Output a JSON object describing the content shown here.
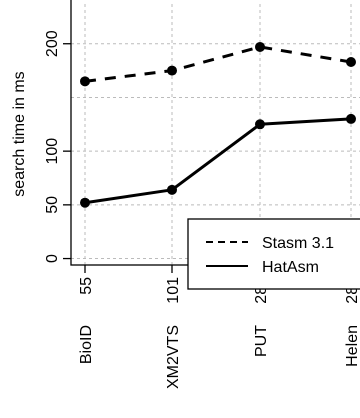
{
  "chart_data": {
    "type": "line",
    "ylabel": "search time in ms",
    "categories": [
      {
        "name": "BioID",
        "n": "55"
      },
      {
        "name": "XM2VTS",
        "n": "101"
      },
      {
        "name": "PUT",
        "n": "280"
      },
      {
        "name": "Helen",
        "n": "280"
      }
    ],
    "y_ticks": [
      "0",
      "50",
      "100",
      "200"
    ],
    "y_tick_values": [
      0,
      50,
      100,
      200
    ],
    "grid_y_values": [
      0,
      50,
      100,
      150,
      200
    ],
    "ylim": [
      -6,
      237
    ],
    "series": [
      {
        "name": "Stasm 3.1",
        "style": "dashed",
        "values": [
          165,
          175,
          197,
          183
        ]
      },
      {
        "name": "HatAsm",
        "style": "solid",
        "values": [
          52,
          64,
          125,
          130
        ]
      }
    ],
    "legend_position": "bottom-right",
    "grid": true
  }
}
